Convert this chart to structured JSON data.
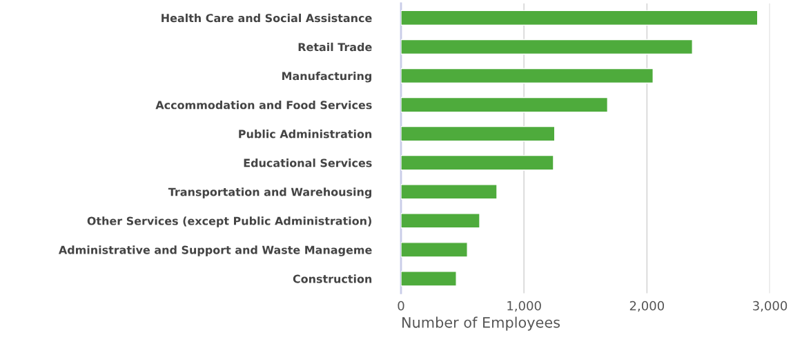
{
  "chart_data": {
    "type": "bar",
    "orientation": "horizontal",
    "xlabel": "Number of Employees",
    "categories": [
      "Health Care and Social Assistance",
      "Retail Trade",
      "Manufacturing",
      "Accommodation and Food Services",
      "Public Administration",
      "Educational Services",
      "Transportation and Warehousing",
      "Other Services (except Public Administration)",
      "Administrative and Support and Waste Manageme",
      "Construction"
    ],
    "values": [
      2900,
      2370,
      2050,
      1680,
      1250,
      1240,
      780,
      640,
      540,
      450
    ],
    "color": "#4eab3c",
    "xlim": [
      0,
      3000
    ],
    "xticks": [
      0,
      {
        "value": 1000,
        "label": "1,000"
      },
      {
        "value": 2000,
        "label": "2,000"
      },
      {
        "value": 3000,
        "label": "3,000"
      }
    ],
    "grid": "x"
  }
}
